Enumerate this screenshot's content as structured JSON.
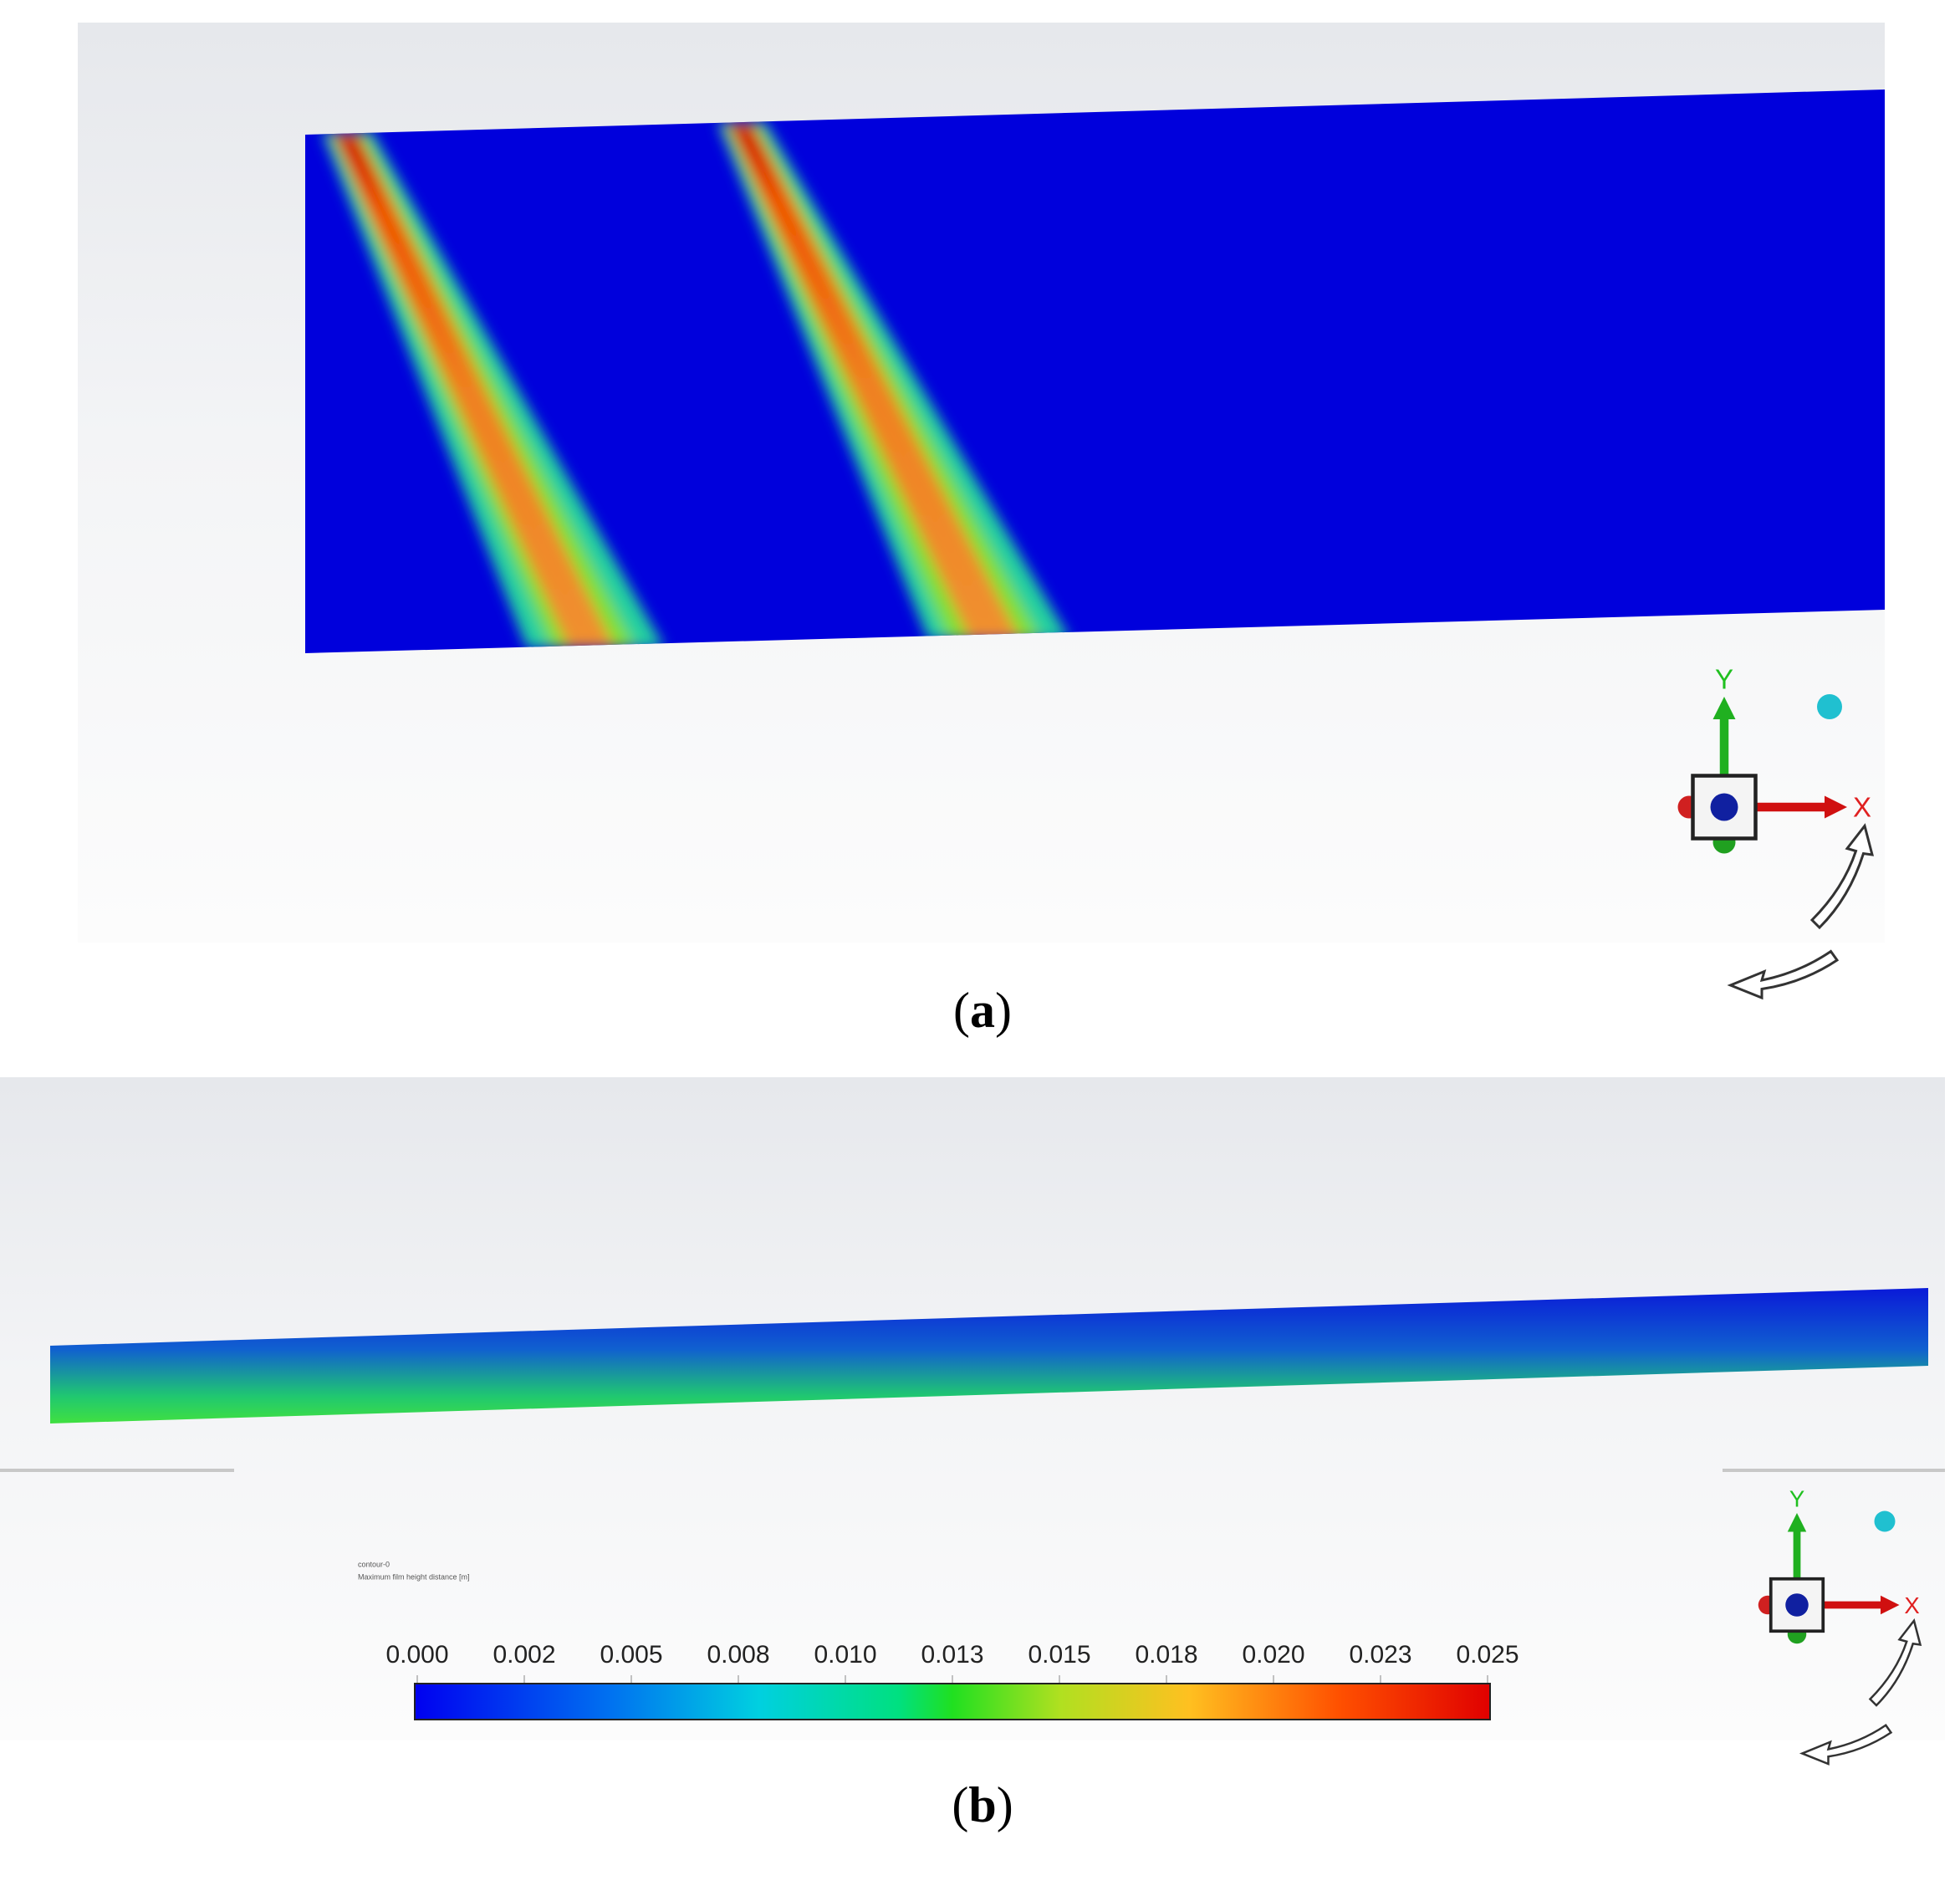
{
  "panels": [
    {
      "label_open": "(",
      "label_letter": "a",
      "label_close": ")",
      "triad": {
        "y": "Y",
        "x": "X"
      }
    },
    {
      "label_open": "(",
      "label_letter": "b",
      "label_close": ")",
      "triad": {
        "y": "Y",
        "x": "X"
      },
      "legend": {
        "name": "contour-0",
        "quantity": "Maximum film height distance [m]"
      },
      "colorbar": {
        "ticks": [
          "0.000",
          "0.002",
          "0.005",
          "0.008",
          "0.010",
          "0.013",
          "0.015",
          "0.018",
          "0.020",
          "0.023",
          "0.025"
        ]
      }
    }
  ]
}
